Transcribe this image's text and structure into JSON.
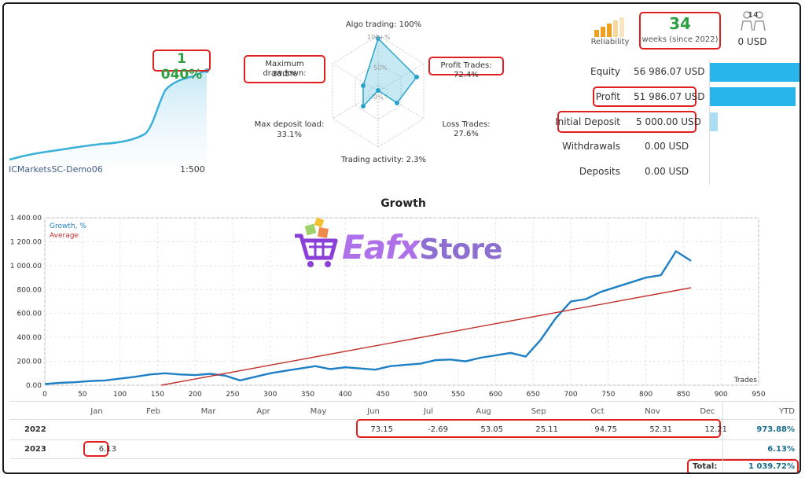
{
  "mini_chart": {
    "return_label": "1 040%",
    "account": "ICMarketsSC-Demo06",
    "leverage": "1:500"
  },
  "radar": {
    "algo_trading": "Algo trading: 100%",
    "profit_trades": "Profit Trades: 72.4%",
    "loss_trades": "Loss Trades: 27.6%",
    "trading_activity": "Trading activity: 2.3%",
    "max_deposit_load_title": "Max deposit load:",
    "max_deposit_load_value": "33.1%",
    "max_drawdown_title": "Maximum drawdown:",
    "max_drawdown_value": "33.5%",
    "ring_100": "100+%",
    "ring_50": "50%",
    "ring_0": "0%"
  },
  "summary": {
    "reliability_label": "Reliability",
    "weeks_value": "34",
    "weeks_label": "weeks (since 2022)",
    "subscribers_count": "14",
    "subscribers_funds": "0 USD"
  },
  "stats": [
    {
      "label": "Equity",
      "value": "56 986.07 USD",
      "bar_fraction": 1.0
    },
    {
      "label": "Profit",
      "value": "51 986.07 USD",
      "bar_fraction": 0.912
    },
    {
      "label": "Initial Deposit",
      "value": "5 000.00 USD",
      "bar_fraction": 0.088
    },
    {
      "label": "Withdrawals",
      "value": "0.00 USD",
      "bar_fraction": 0
    },
    {
      "label": "Deposits",
      "value": "0.00 USD",
      "bar_fraction": 0
    }
  ],
  "watermark": {
    "part1": "Eafx",
    "part2": "Store"
  },
  "chart_data": {
    "type": "line",
    "title": "Growth",
    "xlabel": "Trades",
    "ylabel": "",
    "xlim": [
      0,
      950
    ],
    "ylim": [
      0,
      1400
    ],
    "x_ticks": [
      "0",
      "50",
      "100",
      "150",
      "200",
      "250",
      "300",
      "350",
      "400",
      "450",
      "500",
      "550",
      "600",
      "650",
      "700",
      "750",
      "800",
      "850",
      "900",
      "950"
    ],
    "y_ticks": [
      "0.00",
      "200.00",
      "400.00",
      "600.00",
      "800.00",
      "1 000.00",
      "1 200.00",
      "1 400.00"
    ],
    "legend": [
      "Growth, %",
      "Average"
    ],
    "legend_position": "top-left",
    "grid": true,
    "series": [
      {
        "name": "Growth, %",
        "color": "#1f7fc4",
        "x": [
          0,
          20,
          40,
          60,
          80,
          100,
          120,
          140,
          160,
          180,
          200,
          220,
          240,
          260,
          280,
          300,
          320,
          340,
          360,
          380,
          400,
          420,
          440,
          460,
          480,
          500,
          520,
          540,
          560,
          580,
          600,
          620,
          640,
          660,
          680,
          700,
          720,
          740,
          760,
          780,
          800,
          820,
          840,
          860
        ],
        "y": [
          10,
          20,
          25,
          35,
          40,
          55,
          70,
          90,
          100,
          90,
          85,
          95,
          80,
          40,
          70,
          100,
          120,
          140,
          160,
          135,
          150,
          140,
          130,
          160,
          170,
          180,
          210,
          215,
          200,
          230,
          250,
          270,
          240,
          380,
          560,
          700,
          720,
          780,
          820,
          860,
          900,
          920,
          1120,
          1040
        ]
      },
      {
        "name": "Average",
        "color": "#c0312b",
        "x": [
          155,
          860
        ],
        "y": [
          0,
          815
        ]
      }
    ]
  },
  "returns_table": {
    "months": [
      "Jan",
      "Feb",
      "Mar",
      "Apr",
      "May",
      "Jun",
      "Jul",
      "Aug",
      "Sep",
      "Oct",
      "Nov",
      "Dec"
    ],
    "ytd_label": "YTD",
    "rows": [
      {
        "year": "2022",
        "values": [
          "",
          "",
          "",
          "",
          "",
          "73.15",
          "-2.69",
          "53.05",
          "25.11",
          "94.75",
          "52.31",
          "12.21"
        ],
        "ytd": "973.88%"
      },
      {
        "year": "2023",
        "values": [
          "6.13",
          "",
          "",
          "",
          "",
          "",
          "",
          "",
          "",
          "",
          "",
          ""
        ],
        "ytd": "6.13%"
      }
    ],
    "total_label": "Total:",
    "total_value": "1 039.72%"
  }
}
